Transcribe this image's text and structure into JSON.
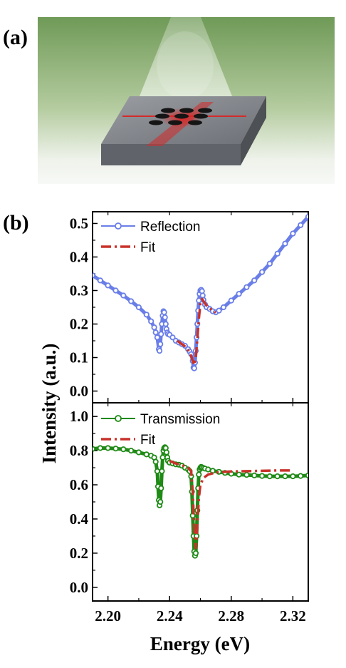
{
  "panel_a": {
    "label": "(a)"
  },
  "panel_b": {
    "label": "(b)"
  },
  "colors": {
    "reflection": "#6a7ee8",
    "transmission": "#1f8a16",
    "fit": "#c8322a",
    "slab_top": "#7c7f85",
    "slab_side": "#5c6066",
    "bg_green": "#6f9a57"
  },
  "chart_data": [
    {
      "type": "line",
      "name": "reflection",
      "xlabel": "Energy (eV)",
      "ylabel": "Intensity (a.u.)",
      "xlim": [
        2.19,
        2.33
      ],
      "ylim": [
        -0.035,
        0.535
      ],
      "xticks": [
        2.2,
        2.24,
        2.28,
        2.32
      ],
      "xtick_labels": [
        "2.20",
        "2.24",
        "2.28",
        "2.32"
      ],
      "yticks": [
        0.0,
        0.1,
        0.2,
        0.3,
        0.4,
        0.5
      ],
      "ytick_labels": [
        "0.0",
        "0.1",
        "0.2",
        "0.3",
        "0.4",
        "0.5"
      ],
      "legend_position": "top-left",
      "series": [
        {
          "name": "Reflection",
          "style": "line-open-circles",
          "x": [
            2.19,
            2.195,
            2.2,
            2.205,
            2.21,
            2.215,
            2.22,
            2.225,
            2.228,
            2.23,
            2.231,
            2.232,
            2.233,
            2.2335,
            2.234,
            2.2345,
            2.235,
            2.2355,
            2.236,
            2.2365,
            2.237,
            2.2375,
            2.238,
            2.2385,
            2.239,
            2.24,
            2.242,
            2.244,
            2.246,
            2.248,
            2.25,
            2.252,
            2.253,
            2.254,
            2.255,
            2.2555,
            2.256,
            2.2565,
            2.257,
            2.2575,
            2.258,
            2.2585,
            2.259,
            2.2595,
            2.26,
            2.2605,
            2.261,
            2.2615,
            2.262,
            2.263,
            2.264,
            2.266,
            2.268,
            2.27,
            2.272,
            2.275,
            2.28,
            2.285,
            2.29,
            2.295,
            2.3,
            2.305,
            2.31,
            2.315,
            2.32,
            2.325,
            2.33
          ],
          "y": [
            0.345,
            0.33,
            0.315,
            0.3,
            0.285,
            0.268,
            0.25,
            0.228,
            0.208,
            0.19,
            0.175,
            0.16,
            0.125,
            0.12,
            0.14,
            0.17,
            0.2,
            0.225,
            0.238,
            0.235,
            0.22,
            0.2,
            0.185,
            0.175,
            0.17,
            0.168,
            0.16,
            0.15,
            0.145,
            0.14,
            0.135,
            0.125,
            0.118,
            0.11,
            0.09,
            0.07,
            0.068,
            0.085,
            0.12,
            0.16,
            0.2,
            0.24,
            0.27,
            0.29,
            0.3,
            0.302,
            0.298,
            0.285,
            0.272,
            0.258,
            0.25,
            0.245,
            0.238,
            0.235,
            0.24,
            0.25,
            0.27,
            0.29,
            0.31,
            0.33,
            0.355,
            0.38,
            0.41,
            0.44,
            0.47,
            0.495,
            0.52
          ]
        },
        {
          "name": "Fit",
          "style": "dash-dot",
          "x": [
            2.245,
            2.248,
            2.25,
            2.252,
            2.254,
            2.255,
            2.256,
            2.257,
            2.258,
            2.259,
            2.26,
            2.261,
            2.262,
            2.264,
            2.266,
            2.268,
            2.27
          ],
          "y": [
            0.15,
            0.14,
            0.133,
            0.122,
            0.105,
            0.09,
            0.078,
            0.1,
            0.155,
            0.215,
            0.262,
            0.275,
            0.268,
            0.255,
            0.247,
            0.24,
            0.234
          ]
        }
      ]
    },
    {
      "type": "line",
      "name": "transmission",
      "xlabel": "Energy (eV)",
      "ylabel": "Intensity (a.u.)",
      "xlim": [
        2.19,
        2.33
      ],
      "ylim": [
        -0.08,
        1.08
      ],
      "xticks": [
        2.2,
        2.24,
        2.28,
        2.32
      ],
      "xtick_labels": [
        "2.20",
        "2.24",
        "2.28",
        "2.32"
      ],
      "yticks": [
        0.0,
        0.2,
        0.4,
        0.6,
        0.8,
        1.0
      ],
      "ytick_labels": [
        "0.0",
        "0.2",
        "0.4",
        "0.6",
        "0.8",
        "1.0"
      ],
      "legend_position": "top-left",
      "series": [
        {
          "name": "Transmission",
          "style": "line-open-circles",
          "x": [
            2.19,
            2.195,
            2.2,
            2.205,
            2.21,
            2.215,
            2.22,
            2.225,
            2.228,
            2.23,
            2.231,
            2.232,
            2.2325,
            2.233,
            2.2335,
            2.234,
            2.2345,
            2.235,
            2.2355,
            2.236,
            2.2365,
            2.237,
            2.2375,
            2.238,
            2.2385,
            2.239,
            2.24,
            2.242,
            2.244,
            2.246,
            2.248,
            2.25,
            2.252,
            2.253,
            2.254,
            2.2545,
            2.255,
            2.2555,
            2.256,
            2.2565,
            2.257,
            2.2575,
            2.258,
            2.2585,
            2.259,
            2.2595,
            2.26,
            2.2605,
            2.261,
            2.262,
            2.263,
            2.265,
            2.268,
            2.272,
            2.276,
            2.28,
            2.285,
            2.29,
            2.295,
            2.3,
            2.305,
            2.31,
            2.315,
            2.32,
            2.325,
            2.33
          ],
          "y": [
            0.81,
            0.815,
            0.815,
            0.812,
            0.808,
            0.8,
            0.79,
            0.778,
            0.77,
            0.76,
            0.735,
            0.68,
            0.59,
            0.51,
            0.48,
            0.5,
            0.58,
            0.68,
            0.76,
            0.8,
            0.815,
            0.82,
            0.815,
            0.79,
            0.76,
            0.74,
            0.73,
            0.725,
            0.72,
            0.718,
            0.712,
            0.7,
            0.69,
            0.68,
            0.65,
            0.56,
            0.42,
            0.3,
            0.21,
            0.185,
            0.2,
            0.3,
            0.45,
            0.58,
            0.66,
            0.69,
            0.7,
            0.705,
            0.702,
            0.698,
            0.695,
            0.69,
            0.682,
            0.676,
            0.67,
            0.665,
            0.66,
            0.658,
            0.655,
            0.652,
            0.65,
            0.65,
            0.65,
            0.65,
            0.652,
            0.655
          ]
        },
        {
          "name": "Fit",
          "style": "dash-dot",
          "x": [
            2.24,
            2.244,
            2.248,
            2.25,
            2.252,
            2.254,
            2.255,
            2.256,
            2.257,
            2.258,
            2.259,
            2.26,
            2.262,
            2.265,
            2.27,
            2.28,
            2.29,
            2.3,
            2.31,
            2.32
          ],
          "y": [
            0.74,
            0.725,
            0.715,
            0.708,
            0.7,
            0.68,
            0.56,
            0.35,
            0.23,
            0.36,
            0.52,
            0.6,
            0.64,
            0.66,
            0.672,
            0.678,
            0.68,
            0.682,
            0.684,
            0.684
          ]
        }
      ]
    }
  ]
}
